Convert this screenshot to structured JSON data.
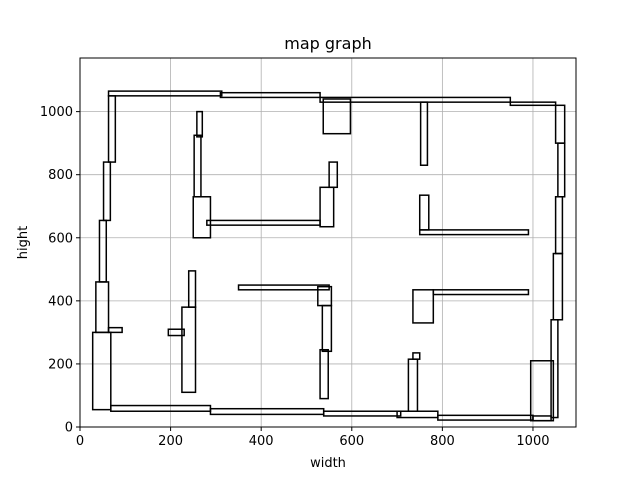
{
  "chart_data": {
    "type": "map",
    "title": "map graph",
    "xlabel": "width",
    "ylabel": "hight",
    "xlim": [
      0,
      1095
    ],
    "ylim": [
      0,
      1170
    ],
    "xticks": [
      0,
      200,
      400,
      600,
      800,
      1000
    ],
    "yticks": [
      0,
      200,
      400,
      600,
      800,
      1000
    ],
    "grid": true,
    "color": "#000000",
    "rectangles": [
      [
        63,
        1050,
        250,
        15
      ],
      [
        310,
        1045,
        220,
        15
      ],
      [
        530,
        1030,
        420,
        15
      ],
      [
        950,
        1020,
        100,
        10
      ],
      [
        63,
        840,
        15,
        210
      ],
      [
        52,
        655,
        15,
        185
      ],
      [
        43,
        460,
        15,
        195
      ],
      [
        35,
        300,
        28,
        160
      ],
      [
        28,
        55,
        40,
        245
      ],
      [
        63,
        300,
        30,
        15
      ],
      [
        68,
        50,
        220,
        18
      ],
      [
        288,
        40,
        250,
        18
      ],
      [
        538,
        35,
        170,
        15
      ],
      [
        700,
        30,
        90,
        20
      ],
      [
        790,
        22,
        210,
        15
      ],
      [
        1000,
        20,
        40,
        15
      ],
      [
        995,
        20,
        50,
        190
      ],
      [
        1040,
        30,
        15,
        310
      ],
      [
        1045,
        340,
        20,
        210
      ],
      [
        1050,
        550,
        15,
        180
      ],
      [
        1055,
        730,
        15,
        170
      ],
      [
        1050,
        900,
        20,
        120
      ],
      [
        537,
        930,
        60,
        110
      ],
      [
        752,
        830,
        15,
        200
      ],
      [
        250,
        600,
        38,
        130
      ],
      [
        252,
        730,
        15,
        195
      ],
      [
        258,
        920,
        12,
        80
      ],
      [
        280,
        640,
        250,
        15
      ],
      [
        530,
        635,
        30,
        125
      ],
      [
        550,
        760,
        18,
        80
      ],
      [
        750,
        625,
        20,
        110
      ],
      [
        750,
        610,
        240,
        15
      ],
      [
        350,
        435,
        200,
        15
      ],
      [
        525,
        385,
        30,
        60
      ],
      [
        535,
        240,
        20,
        145
      ],
      [
        530,
        90,
        18,
        155
      ],
      [
        195,
        290,
        35,
        20
      ],
      [
        225,
        110,
        30,
        270
      ],
      [
        240,
        380,
        15,
        115
      ],
      [
        735,
        330,
        45,
        105
      ],
      [
        780,
        420,
        210,
        15
      ],
      [
        725,
        50,
        20,
        165
      ],
      [
        735,
        215,
        15,
        20
      ]
    ]
  }
}
